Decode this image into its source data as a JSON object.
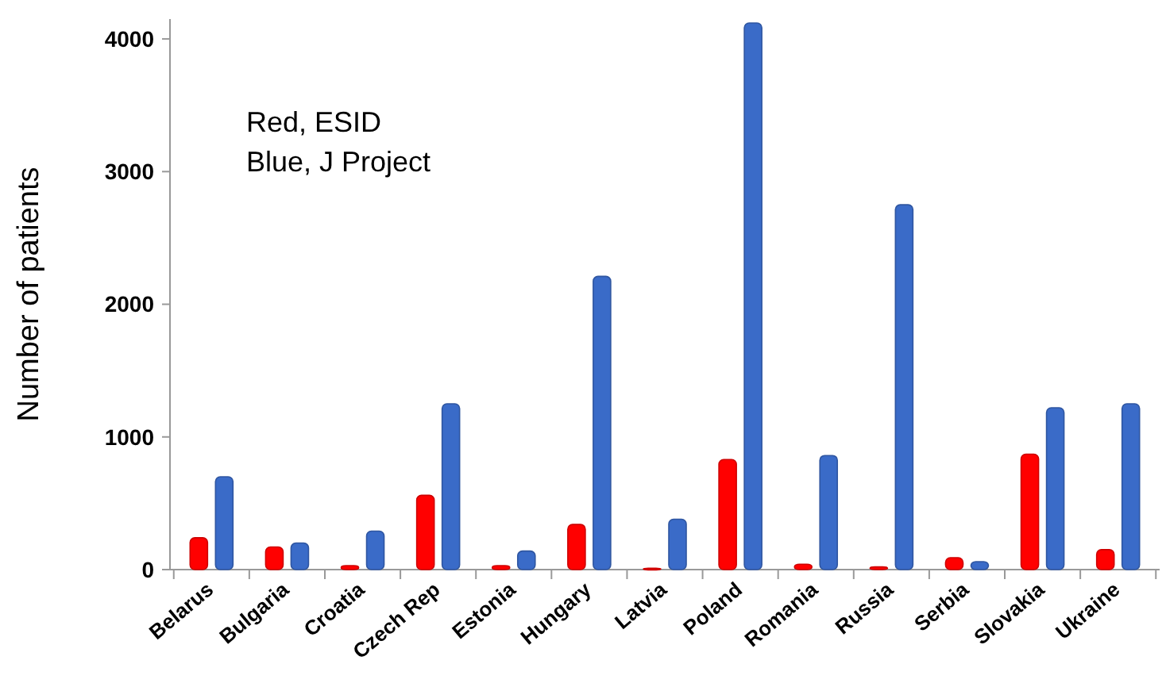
{
  "chart_data": {
    "type": "bar",
    "ylabel": "Number of patients",
    "categories": [
      "Belarus",
      "Bulgaria",
      "Croatia",
      "Czech Rep",
      "Estonia",
      "Hungary",
      "Latvia",
      "Poland",
      "Romania",
      "Russia",
      "Serbia",
      "Slovakia",
      "Ukraine"
    ],
    "series": [
      {
        "color": "#ff0000",
        "values": [
          240,
          170,
          30,
          560,
          30,
          340,
          10,
          830,
          40,
          20,
          90,
          870,
          150
        ]
      },
      {
        "color": "#3a6bc8",
        "values": [
          700,
          200,
          290,
          1250,
          140,
          2210,
          380,
          4120,
          860,
          2750,
          60,
          1220,
          1250
        ]
      }
    ],
    "ylim": [
      0,
      4150
    ],
    "yticks": [
      0,
      1000,
      2000,
      3000,
      4000
    ],
    "grid": false,
    "annotations": [
      "Red, ESID",
      "Blue, J Project"
    ]
  }
}
